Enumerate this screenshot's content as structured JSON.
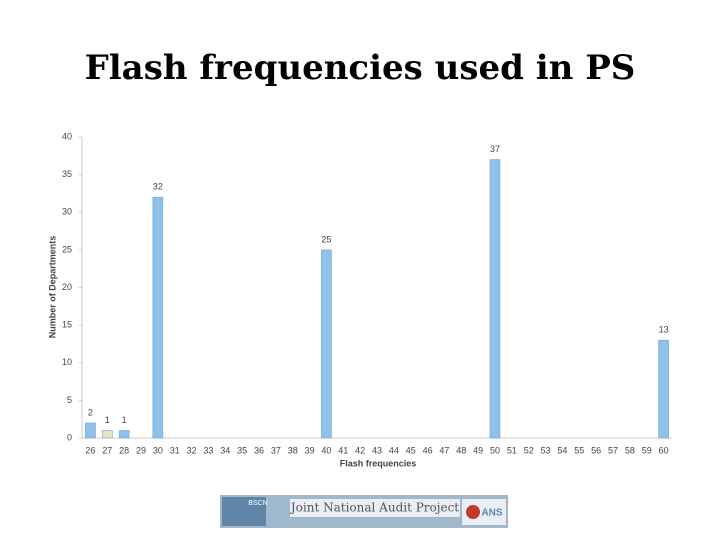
{
  "chart_data": {
    "type": "bar",
    "title": "Flash frequencies used in PS",
    "x_label": "Flash frequencies",
    "y_label": "Number of Departments",
    "categories": [
      "26",
      "27",
      "28",
      "29",
      "30",
      "31",
      "32",
      "33",
      "34",
      "35",
      "36",
      "37",
      "38",
      "39",
      "40",
      "41",
      "42",
      "43",
      "44",
      "45",
      "46",
      "47",
      "48",
      "49",
      "50",
      "51",
      "52",
      "53",
      "54",
      "55",
      "56",
      "57",
      "58",
      "59",
      "60"
    ],
    "values": [
      2,
      1,
      1,
      0,
      32,
      0,
      0,
      0,
      0,
      0,
      0,
      0,
      0,
      0,
      25,
      0,
      0,
      0,
      0,
      0,
      0,
      0,
      0,
      0,
      37,
      0,
      0,
      0,
      0,
      0,
      0,
      0,
      0,
      0,
      13
    ],
    "colors": [
      "#8fc1ea",
      "#ece1c4",
      "#8fc1ea",
      "#8fc1ea",
      "#8fc1ea",
      "#8fc1ea",
      "#8fc1ea",
      "#8fc1ea",
      "#8fc1ea",
      "#8fc1ea",
      "#8fc1ea",
      "#8fc1ea",
      "#8fc1ea",
      "#8fc1ea",
      "#8fc1ea",
      "#8fc1ea",
      "#8fc1ea",
      "#8fc1ea",
      "#8fc1ea",
      "#8fc1ea",
      "#8fc1ea",
      "#8fc1ea",
      "#8fc1ea",
      "#8fc1ea",
      "#8fc1ea",
      "#8fc1ea",
      "#8fc1ea",
      "#8fc1ea",
      "#8fc1ea",
      "#8fc1ea",
      "#8fc1ea",
      "#8fc1ea",
      "#8fc1ea",
      "#8fc1ea",
      "#8fc1ea"
    ],
    "ylim": [
      0,
      40
    ],
    "yticks": [
      0,
      5,
      10,
      15,
      20,
      25,
      30,
      35,
      40
    ],
    "grid": false
  },
  "footer": {
    "logo_left": "BSCN",
    "logo_center": "Joint National Audit Project",
    "logo_right": "ANS"
  }
}
